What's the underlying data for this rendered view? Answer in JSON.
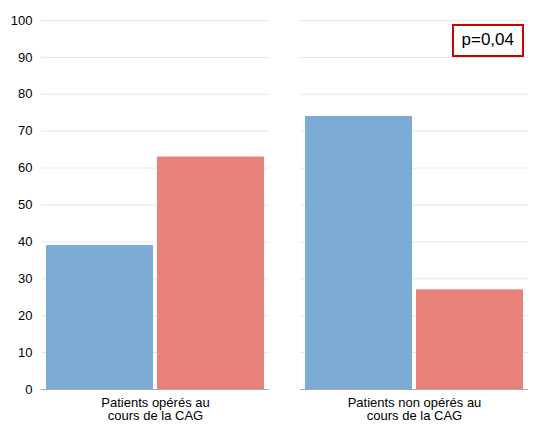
{
  "chart_data": {
    "type": "bar",
    "categories": [
      "Patients opérés au\ncours de la CAG",
      "Patients non opérés au\ncours de la CAG"
    ],
    "series": [
      {
        "color": "#7BAAD4",
        "values": [
          39,
          74
        ]
      },
      {
        "color": "#E8827A",
        "values": [
          63,
          27
        ]
      }
    ],
    "ylim": [
      0,
      100
    ],
    "yticks": [
      0,
      10,
      20,
      30,
      40,
      50,
      60,
      70,
      80,
      90,
      100
    ],
    "grid": true,
    "annotations": [
      {
        "text": "p=0,04",
        "color": "#CC0000"
      }
    ]
  }
}
